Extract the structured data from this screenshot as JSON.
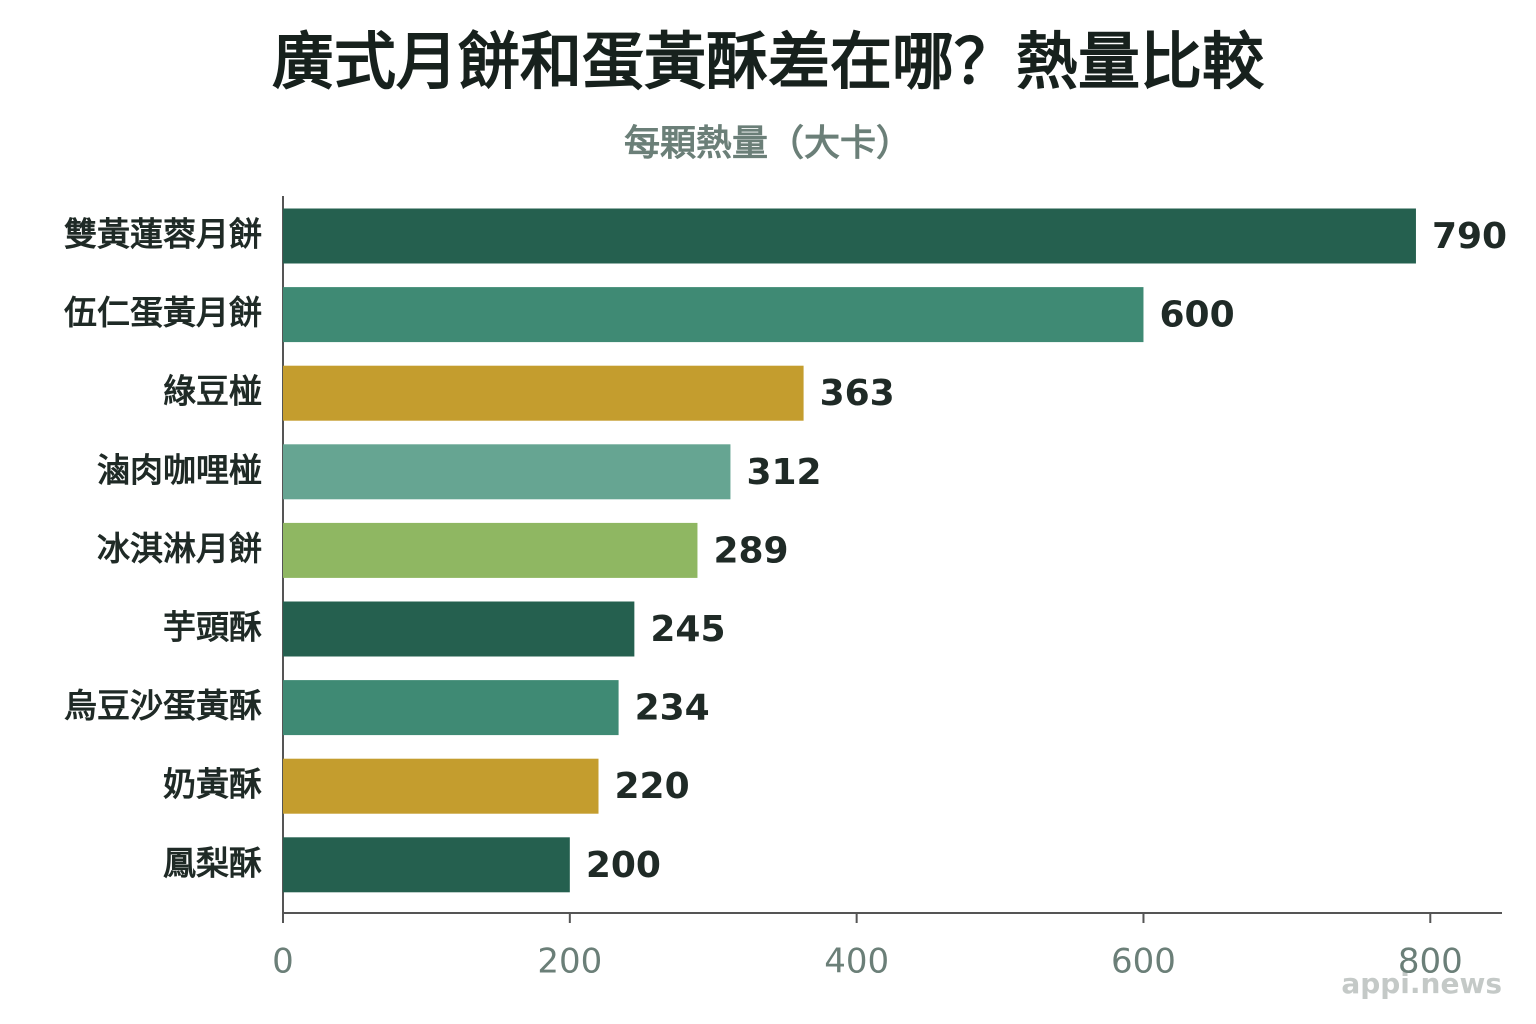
{
  "chart_data": {
    "type": "bar",
    "orientation": "horizontal",
    "title": "廣式月餅和蛋黃酥差在哪？熱量比較",
    "subtitle": "每顆熱量（大卡）",
    "categories": [
      "雙黃蓮蓉月餅",
      "伍仁蛋黃月餅",
      "綠豆椪",
      "滷肉咖哩椪",
      "冰淇淋月餅",
      "芋頭酥",
      "烏豆沙蛋黃酥",
      "奶黃酥",
      "鳳梨酥"
    ],
    "values": [
      790,
      600,
      363,
      312,
      289,
      245,
      234,
      220,
      200
    ],
    "colors": [
      "#25604f",
      "#3f8a74",
      "#c49d2e",
      "#66a592",
      "#8fb762",
      "#25604f",
      "#3f8a74",
      "#c49d2e",
      "#25604f"
    ],
    "xlim": [
      0,
      850
    ],
    "xticks": [
      0,
      200,
      400,
      600,
      800
    ],
    "watermark": "appi.news"
  }
}
